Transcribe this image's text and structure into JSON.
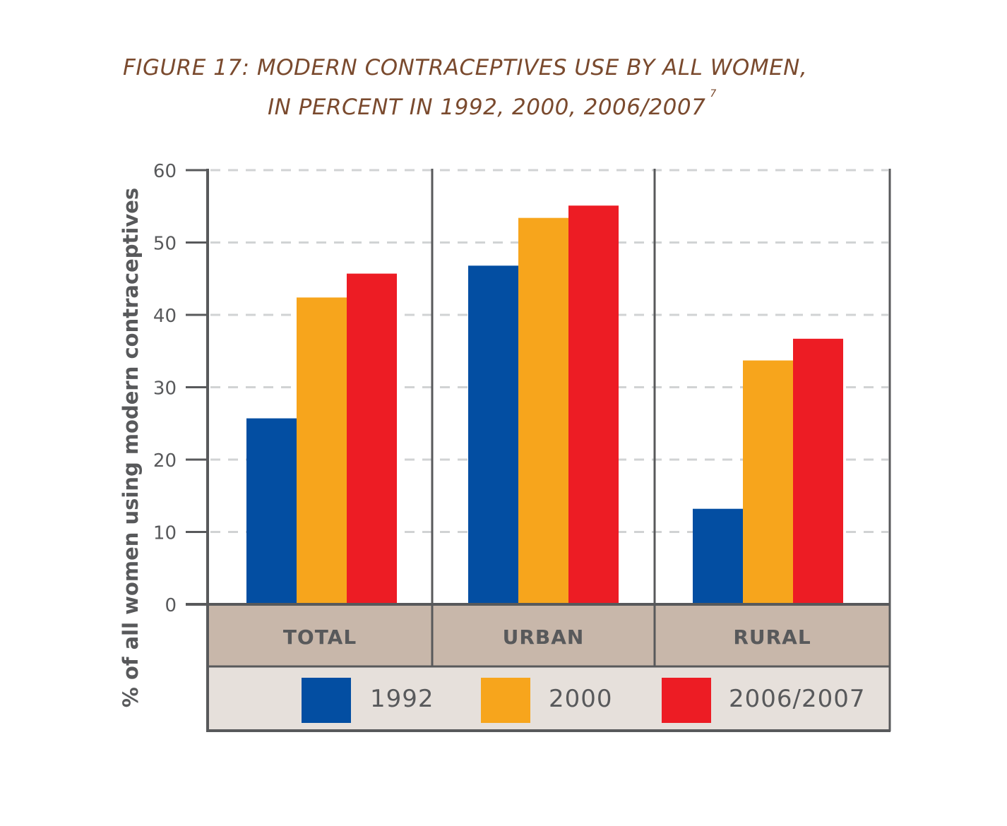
{
  "title_line1": "FIGURE 17: MODERN CONTRACEPTIVES USE BY ALL WOMEN,",
  "title_line2": "IN PERCENT IN 1992, 2000, 2006/2007",
  "title_footnote": "7",
  "colors": {
    "1992": "#034ea2",
    "2000": "#f7a51c",
    "2006/2007": "#ed1c24",
    "axis": "#58595b",
    "grid": "#d1d3d4",
    "category_band": "#c8b7aa",
    "legend_band": "#e6e0db"
  },
  "chart_data": {
    "type": "bar",
    "title": "FIGURE 17: MODERN CONTRACEPTIVES USE BY ALL WOMEN, IN PERCENT IN 1992, 2000, 2006/2007",
    "categories": [
      "TOTAL",
      "URBAN",
      "RURAL"
    ],
    "series": [
      {
        "name": "1992",
        "values": [
          25.7,
          46.8,
          13.2
        ]
      },
      {
        "name": "2000",
        "values": [
          42.4,
          53.4,
          33.7
        ]
      },
      {
        "name": "2006/2007",
        "values": [
          45.7,
          55.1,
          36.7
        ]
      }
    ],
    "xlabel": "",
    "ylabel": "% of all women using modern contraceptives",
    "ylim": [
      0,
      60
    ],
    "yticks": [
      0,
      10,
      20,
      30,
      40,
      50,
      60
    ],
    "grid": true,
    "legend_position": "bottom"
  }
}
